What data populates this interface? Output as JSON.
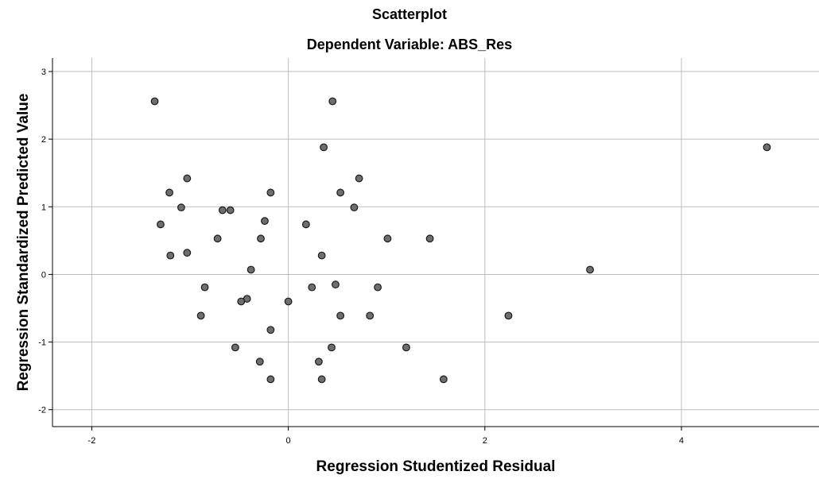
{
  "chart_data": {
    "type": "scatter",
    "title": "Scatterplot",
    "subtitle": "Dependent Variable: ABS_Res",
    "xlabel": "Regression Studentized Residual",
    "ylabel": "Regression Standardized Predicted Value",
    "xlim": [
      -2.4,
      5.4
    ],
    "ylim": [
      -2.25,
      3.2
    ],
    "xticks": [
      -2,
      0,
      2,
      4
    ],
    "yticks": [
      -2,
      -1,
      0,
      1,
      2,
      3
    ],
    "grid": true,
    "colors": {
      "marker_fill": "#6e6e6e",
      "marker_edge": "#1a1a1a",
      "grid": "#bdbdbd",
      "axis": "#000000"
    },
    "points": [
      {
        "x": -1.36,
        "y": 2.56
      },
      {
        "x": 0.45,
        "y": 2.56
      },
      {
        "x": 0.36,
        "y": 1.88
      },
      {
        "x": 4.87,
        "y": 1.88
      },
      {
        "x": -1.03,
        "y": 1.42
      },
      {
        "x": 0.72,
        "y": 1.42
      },
      {
        "x": -1.21,
        "y": 1.21
      },
      {
        "x": -0.18,
        "y": 1.21
      },
      {
        "x": 0.53,
        "y": 1.21
      },
      {
        "x": -1.09,
        "y": 0.99
      },
      {
        "x": 0.67,
        "y": 0.99
      },
      {
        "x": -0.67,
        "y": 0.95
      },
      {
        "x": -0.59,
        "y": 0.95
      },
      {
        "x": -0.24,
        "y": 0.79
      },
      {
        "x": -1.3,
        "y": 0.74
      },
      {
        "x": 0.18,
        "y": 0.74
      },
      {
        "x": -0.72,
        "y": 0.53
      },
      {
        "x": -0.28,
        "y": 0.53
      },
      {
        "x": 1.01,
        "y": 0.53
      },
      {
        "x": 1.44,
        "y": 0.53
      },
      {
        "x": -1.03,
        "y": 0.32
      },
      {
        "x": -1.2,
        "y": 0.28
      },
      {
        "x": 0.34,
        "y": 0.28
      },
      {
        "x": -0.38,
        "y": 0.07
      },
      {
        "x": 3.07,
        "y": 0.07
      },
      {
        "x": -0.85,
        "y": -0.19
      },
      {
        "x": 0.24,
        "y": -0.19
      },
      {
        "x": 0.48,
        "y": -0.15
      },
      {
        "x": 0.91,
        "y": -0.19
      },
      {
        "x": -0.42,
        "y": -0.36
      },
      {
        "x": -0.48,
        "y": -0.4
      },
      {
        "x": 0.0,
        "y": -0.4
      },
      {
        "x": -0.89,
        "y": -0.61
      },
      {
        "x": 0.53,
        "y": -0.61
      },
      {
        "x": 0.83,
        "y": -0.61
      },
      {
        "x": 2.24,
        "y": -0.61
      },
      {
        "x": -0.18,
        "y": -0.82
      },
      {
        "x": -0.54,
        "y": -1.08
      },
      {
        "x": 0.44,
        "y": -1.08
      },
      {
        "x": 1.2,
        "y": -1.08
      },
      {
        "x": -0.29,
        "y": -1.29
      },
      {
        "x": 0.31,
        "y": -1.29
      },
      {
        "x": -0.18,
        "y": -1.55
      },
      {
        "x": 0.34,
        "y": -1.55
      },
      {
        "x": 1.58,
        "y": -1.55
      }
    ]
  }
}
